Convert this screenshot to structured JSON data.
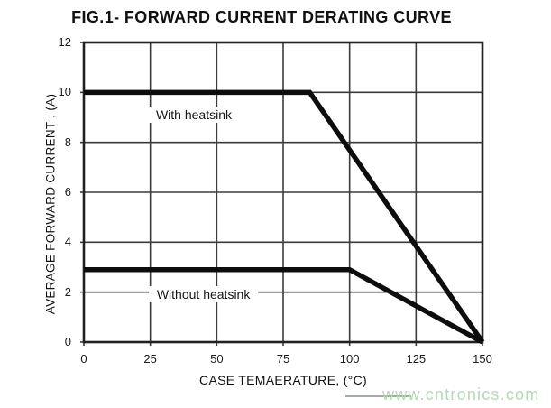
{
  "title": "FIG.1- FORWARD CURRENT DERATING CURVE",
  "watermark": "www.cntronics.com",
  "colors": {
    "curve": "#0d0d0d",
    "grid": "#3b3b3b",
    "border": "#222222",
    "text": "#111111",
    "watermark": "#b3dab3"
  },
  "chart_data": {
    "type": "line",
    "title": "FIG.1- FORWARD CURRENT DERATING CURVE",
    "xlabel": "CASE TEMAERATURE, (°C)",
    "ylabel": "AVERAGE FORWARD CURRENT , (A)",
    "xlim": [
      0,
      150
    ],
    "ylim": [
      0,
      12
    ],
    "x_ticks": [
      0,
      25,
      50,
      75,
      100,
      125,
      150
    ],
    "y_ticks": [
      0,
      2,
      4,
      6,
      8,
      10,
      12
    ],
    "grid": true,
    "legend_position": "none",
    "series": [
      {
        "name": "With heatsink",
        "points": [
          [
            0,
            10
          ],
          [
            85,
            10
          ],
          [
            150,
            0
          ]
        ]
      },
      {
        "name": "Without heatsink",
        "points": [
          [
            0,
            2.9
          ],
          [
            100,
            2.9
          ],
          [
            150,
            0
          ]
        ]
      }
    ],
    "annotations": [
      {
        "text": "With heatsink",
        "x": 41.4,
        "y": 9.1
      },
      {
        "text": "Without heatsink",
        "x": 45,
        "y": 1.9
      }
    ]
  }
}
